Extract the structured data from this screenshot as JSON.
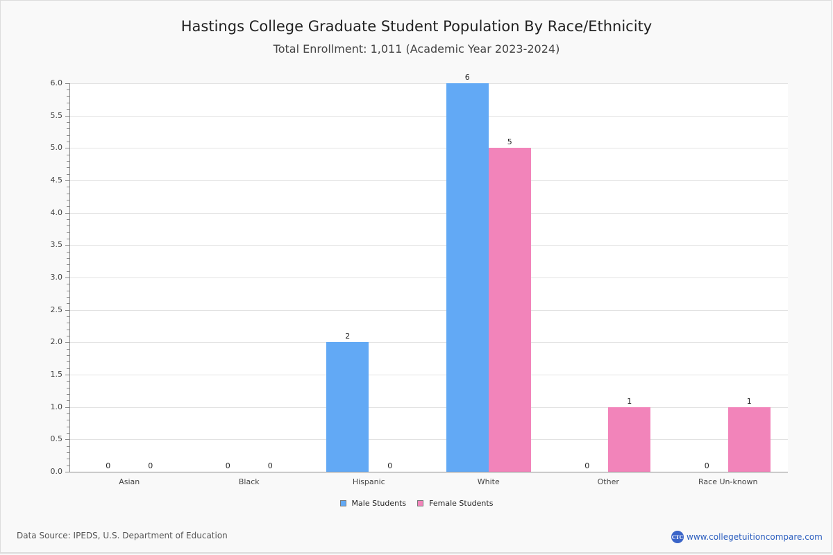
{
  "header": {
    "title": "Hastings College Graduate Student Population By Race/Ethnicity",
    "subtitle": "Total Enrollment: 1,011 (Academic Year 2023-2024)"
  },
  "legend": {
    "male": "Male Students",
    "female": "Female Students"
  },
  "colors": {
    "male": "#62a9f5",
    "female": "#f284ba"
  },
  "footer": {
    "source": "Data Source: IPEDS, U.S. Department of Education",
    "brand_logo": "CTC",
    "brand_url": "www.collegetuitioncompare.com"
  },
  "chart_data": {
    "type": "bar",
    "title": "Hastings College Graduate Student Population By Race/Ethnicity",
    "subtitle": "Total Enrollment: 1,011 (Academic Year 2023-2024)",
    "xlabel": "",
    "ylabel": "",
    "categories": [
      "Asian",
      "Black",
      "Hispanic",
      "White",
      "Other",
      "Race Un-known"
    ],
    "series": [
      {
        "name": "Male Students",
        "color": "#62a9f5",
        "values": [
          0,
          0,
          2,
          6,
          0,
          0
        ]
      },
      {
        "name": "Female Students",
        "color": "#f284ba",
        "values": [
          0,
          0,
          0,
          5,
          1,
          1
        ]
      }
    ],
    "ylim": [
      0,
      6.0
    ],
    "yticks": [
      "0.0",
      "0.5",
      "1.0",
      "1.5",
      "2.0",
      "2.5",
      "3.0",
      "3.5",
      "4.0",
      "4.5",
      "5.0",
      "5.5",
      "6.0"
    ],
    "grid": true,
    "legend_position": "bottom",
    "data_labels": true
  }
}
